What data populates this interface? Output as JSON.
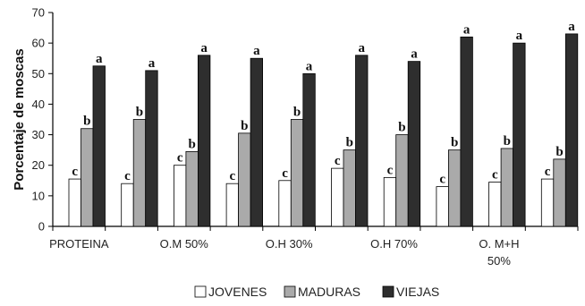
{
  "chart_data": {
    "type": "bar",
    "ylabel": "Porcentaje de moscas",
    "ylim": [
      0,
      70
    ],
    "yticks": [
      0,
      10,
      20,
      30,
      40,
      50,
      60,
      70
    ],
    "category_labels": [
      "PROTEINA",
      "O.M 50%",
      "O.H 30%",
      "O.H 70%",
      "O. M+H 50%"
    ],
    "series": [
      {
        "name": "JOVENES",
        "color": "#ffffff",
        "values": [
          15.5,
          14,
          20,
          14,
          15,
          19,
          16,
          13,
          14.5,
          15.5
        ],
        "letters": [
          "c",
          "c",
          "c",
          "c",
          "c",
          "c",
          "c",
          "c",
          "c",
          "c"
        ]
      },
      {
        "name": "MADURAS",
        "color": "#aaaaaa",
        "values": [
          32,
          35,
          24.5,
          30.5,
          35,
          25,
          30,
          25,
          25.5,
          22
        ],
        "letters": [
          "b",
          "b",
          "b",
          "b",
          "b",
          "b",
          "b",
          "b",
          "b",
          "b"
        ]
      },
      {
        "name": "VIEJAS",
        "color": "#2e2e2e",
        "values": [
          52.5,
          51,
          56,
          55,
          50,
          56,
          54,
          62,
          60,
          63
        ],
        "letters": [
          "a",
          "a",
          "a",
          "a",
          "a",
          "a",
          "a",
          "a",
          "a",
          "a"
        ]
      }
    ],
    "legend_position": "bottom",
    "grid": false
  }
}
